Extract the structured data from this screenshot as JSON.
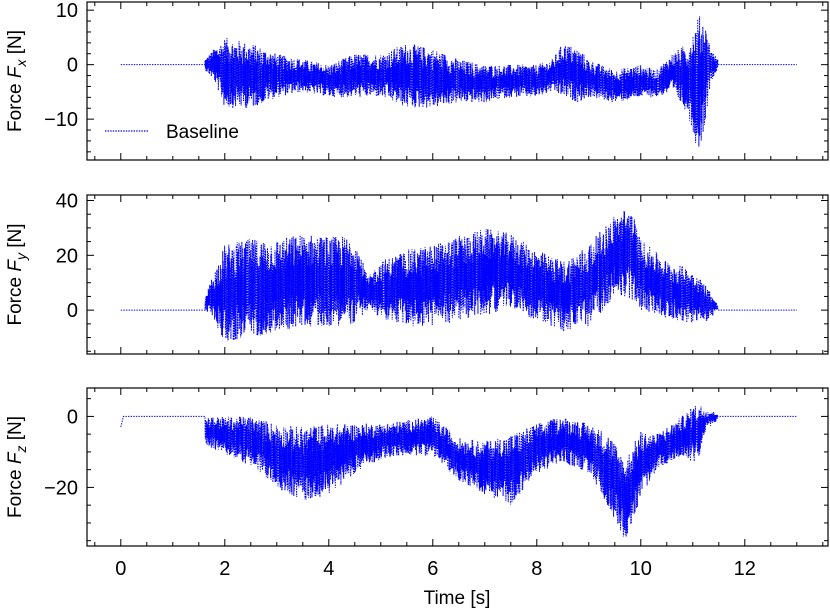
{
  "chart_data": {
    "type": "line",
    "x_label": "Time [s]",
    "x_ticks": [
      0,
      2,
      4,
      6,
      8,
      10,
      12
    ],
    "xlim": [
      -0.65,
      13.6
    ],
    "x_minor_step": 0.5,
    "line_color": "#0000ff",
    "line_style": "dotted",
    "sample_range": [
      0,
      13
    ],
    "legend": {
      "label": "Baseline",
      "placement": "lower-left"
    },
    "panels": [
      {
        "id": "fx",
        "ylabel_prefix": "Force ",
        "ylabel_var": "F",
        "ylabel_sub": "x",
        "ylabel_suffix": " [N]",
        "ylim": [
          -17.5,
          11.5
        ],
        "y_ticks": [
          -10,
          0,
          10
        ],
        "y_tick_labels": [
          "−10",
          "0",
          "10"
        ],
        "y_minor_step": 2,
        "show_legend": true,
        "active_range": [
          1.62,
          11.48
        ],
        "envelope": [
          [
            1.62,
            -1,
            1
          ],
          [
            1.8,
            -3,
            3
          ],
          [
            2.0,
            -8,
            5
          ],
          [
            2.5,
            -8,
            4
          ],
          [
            3.0,
            -6,
            2
          ],
          [
            3.5,
            -5,
            1
          ],
          [
            4.0,
            -6,
            0
          ],
          [
            4.5,
            -6,
            2
          ],
          [
            5.0,
            -6,
            2
          ],
          [
            5.5,
            -8,
            4
          ],
          [
            6.0,
            -8,
            3
          ],
          [
            6.5,
            -7,
            1
          ],
          [
            7.0,
            -7,
            0
          ],
          [
            7.5,
            -6,
            0
          ],
          [
            8.0,
            -6,
            0
          ],
          [
            8.3,
            -5,
            1
          ],
          [
            8.5,
            -6,
            4
          ],
          [
            8.8,
            -7,
            3
          ],
          [
            9.0,
            -6,
            1
          ],
          [
            9.5,
            -7,
            -1
          ],
          [
            10.0,
            -6,
            0
          ],
          [
            10.3,
            -6,
            -1
          ],
          [
            10.6,
            -5,
            2
          ],
          [
            10.9,
            -9,
            4
          ],
          [
            11.1,
            -16,
            9
          ],
          [
            11.2,
            -13,
            9
          ],
          [
            11.35,
            -3,
            3
          ],
          [
            11.48,
            -1,
            1
          ]
        ]
      },
      {
        "id": "fy",
        "ylabel_prefix": "Force ",
        "ylabel_var": "F",
        "ylabel_sub": "y",
        "ylabel_suffix": " [N]",
        "ylim": [
          -16,
          42
        ],
        "y_ticks": [
          0,
          20,
          40
        ],
        "y_tick_labels": [
          "0",
          "20",
          "40"
        ],
        "y_minor_step": 5,
        "show_legend": false,
        "active_range": [
          1.62,
          11.48
        ],
        "envelope": [
          [
            1.62,
            0,
            4
          ],
          [
            1.75,
            -2,
            12
          ],
          [
            2.0,
            -12,
            24
          ],
          [
            2.5,
            -10,
            26
          ],
          [
            3.0,
            -8,
            26
          ],
          [
            3.5,
            -6,
            28
          ],
          [
            4.0,
            -6,
            27
          ],
          [
            4.5,
            -5,
            27
          ],
          [
            4.75,
            0,
            12
          ],
          [
            5.0,
            -3,
            18
          ],
          [
            5.5,
            -6,
            22
          ],
          [
            6.0,
            -6,
            24
          ],
          [
            6.5,
            -4,
            27
          ],
          [
            7.0,
            -2,
            30
          ],
          [
            7.5,
            1,
            28
          ],
          [
            8.0,
            -4,
            22
          ],
          [
            8.5,
            -8,
            18
          ],
          [
            9.0,
            -6,
            24
          ],
          [
            9.5,
            5,
            35
          ],
          [
            9.8,
            4,
            38
          ],
          [
            10.0,
            0,
            26
          ],
          [
            10.5,
            -3,
            18
          ],
          [
            11.0,
            -5,
            15
          ],
          [
            11.3,
            -4,
            8
          ],
          [
            11.48,
            0,
            2
          ]
        ]
      },
      {
        "id": "fz",
        "ylabel_prefix": "Force ",
        "ylabel_var": "F",
        "ylabel_sub": "z",
        "ylabel_suffix": " [N]",
        "ylim": [
          -36.5,
          8
        ],
        "y_ticks": [
          -20,
          0
        ],
        "y_tick_labels": [
          "−20",
          "0"
        ],
        "y_minor_step": 5,
        "show_legend": false,
        "active_range": [
          1.62,
          11.48
        ],
        "startup_dip": [
          0.0,
          -3
        ],
        "envelope": [
          [
            1.62,
            -8,
            0
          ],
          [
            1.9,
            -10,
            0
          ],
          [
            2.5,
            -14,
            0
          ],
          [
            3.0,
            -20,
            -2
          ],
          [
            3.5,
            -24,
            -3
          ],
          [
            4.0,
            -22,
            -2
          ],
          [
            4.5,
            -16,
            -2
          ],
          [
            5.0,
            -12,
            -2
          ],
          [
            5.5,
            -11,
            -1
          ],
          [
            6.0,
            -11,
            0
          ],
          [
            6.5,
            -18,
            -6
          ],
          [
            7.0,
            -22,
            -7
          ],
          [
            7.5,
            -25,
            -5
          ],
          [
            8.0,
            -16,
            -2
          ],
          [
            8.5,
            -13,
            0
          ],
          [
            9.0,
            -16,
            -2
          ],
          [
            9.4,
            -26,
            -5
          ],
          [
            9.7,
            -35,
            -12
          ],
          [
            10.0,
            -23,
            -4
          ],
          [
            10.3,
            -15,
            -5
          ],
          [
            10.7,
            -12,
            -1
          ],
          [
            11.1,
            -13,
            4
          ],
          [
            11.25,
            -4,
            2
          ],
          [
            11.48,
            -1,
            1
          ]
        ]
      }
    ]
  }
}
